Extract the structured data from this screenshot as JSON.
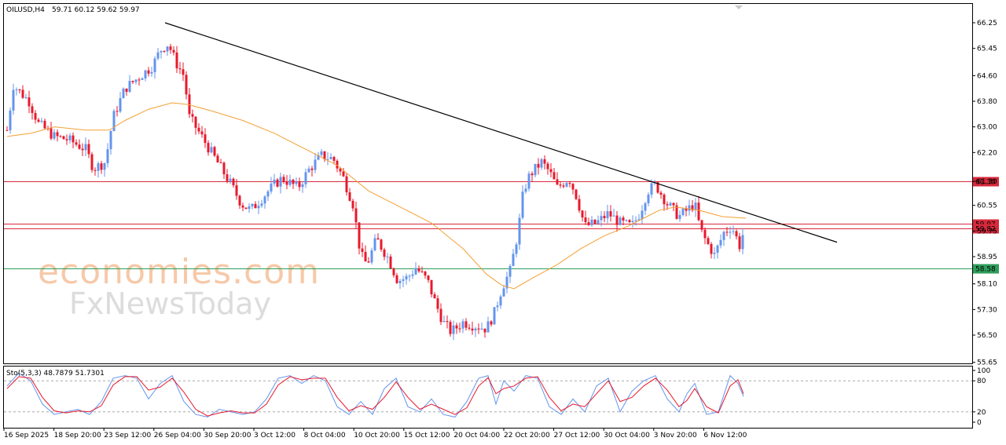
{
  "header": {
    "symbol": "OILUSD,H4",
    "ohlc": "59.71 60.12 59.62 59.97"
  },
  "watermark": {
    "line1": "economies.com",
    "line2": "FxNewsToday"
  },
  "chart_data": {
    "type": "candlestick",
    "title": "OILUSD,H4",
    "ylim": [
      55.65,
      66.6
    ],
    "y_ticks": [
      "66.25",
      "65.45",
      "64.60",
      "63.80",
      "63.00",
      "62.20",
      "61.30",
      "60.55",
      "59.75",
      "58.95",
      "58.10",
      "57.30",
      "56.50",
      "55.65"
    ],
    "x_ticks": [
      "16 Sep 2025",
      "18 Sep 20:00",
      "23 Sep 12:00",
      "26 Sep 04:00",
      "30 Sep 20:00",
      "3 Oct 12:00",
      "8 Oct 04:00",
      "10 Oct 20:00",
      "15 Oct 12:00",
      "20 Oct 04:00",
      "22 Oct 20:00",
      "27 Oct 12:00",
      "30 Oct 04:00",
      "3 Nov 20:00",
      "6 Nov 12:00"
    ],
    "price_path": [
      [
        0,
        62.9
      ],
      [
        8,
        64.3
      ],
      [
        28,
        63.8
      ],
      [
        40,
        63.1
      ],
      [
        60,
        62.7
      ],
      [
        78,
        62.6
      ],
      [
        100,
        62.3
      ],
      [
        110,
        61.7
      ],
      [
        125,
        61.9
      ],
      [
        135,
        63.3
      ],
      [
        150,
        64.2
      ],
      [
        170,
        64.6
      ],
      [
        185,
        64.9
      ],
      [
        195,
        65.4
      ],
      [
        205,
        65.6
      ],
      [
        215,
        65.0
      ],
      [
        225,
        64.6
      ],
      [
        232,
        63.3
      ],
      [
        245,
        62.8
      ],
      [
        265,
        62.0
      ],
      [
        285,
        61.2
      ],
      [
        298,
        60.6
      ],
      [
        310,
        60.4
      ],
      [
        325,
        60.8
      ],
      [
        340,
        61.2
      ],
      [
        350,
        61.4
      ],
      [
        370,
        61.1
      ],
      [
        385,
        61.7
      ],
      [
        400,
        62.1
      ],
      [
        415,
        62.0
      ],
      [
        428,
        61.4
      ],
      [
        440,
        60.6
      ],
      [
        450,
        59.0
      ],
      [
        458,
        58.7
      ],
      [
        470,
        59.5
      ],
      [
        485,
        58.9
      ],
      [
        497,
        58.2
      ],
      [
        510,
        58.3
      ],
      [
        520,
        58.6
      ],
      [
        535,
        58.2
      ],
      [
        545,
        57.5
      ],
      [
        555,
        56.9
      ],
      [
        565,
        56.6
      ],
      [
        580,
        56.9
      ],
      [
        595,
        56.8
      ],
      [
        610,
        56.7
      ],
      [
        620,
        57.2
      ],
      [
        630,
        58.0
      ],
      [
        640,
        58.5
      ],
      [
        650,
        59.7
      ],
      [
        657,
        61.0
      ],
      [
        665,
        61.5
      ],
      [
        680,
        61.9
      ],
      [
        690,
        61.6
      ],
      [
        700,
        61.1
      ],
      [
        715,
        61.4
      ],
      [
        725,
        60.8
      ],
      [
        735,
        59.9
      ],
      [
        750,
        60.0
      ],
      [
        765,
        60.3
      ],
      [
        780,
        60.0
      ],
      [
        795,
        59.9
      ],
      [
        805,
        60.3
      ],
      [
        815,
        61.0
      ],
      [
        825,
        61.2
      ],
      [
        840,
        60.6
      ],
      [
        855,
        60.2
      ],
      [
        865,
        60.4
      ],
      [
        875,
        60.6
      ],
      [
        882,
        59.8
      ],
      [
        890,
        59.4
      ],
      [
        900,
        59.0
      ],
      [
        912,
        59.7
      ],
      [
        922,
        59.9
      ],
      [
        932,
        59.3
      ],
      [
        938,
        59.8
      ]
    ],
    "moving_average": [
      [
        0,
        62.7
      ],
      [
        30,
        62.8
      ],
      [
        60,
        63.0
      ],
      [
        100,
        62.9
      ],
      [
        130,
        62.9
      ],
      [
        150,
        63.2
      ],
      [
        180,
        63.55
      ],
      [
        210,
        63.75
      ],
      [
        230,
        63.7
      ],
      [
        260,
        63.5
      ],
      [
        300,
        63.2
      ],
      [
        340,
        62.8
      ],
      [
        380,
        62.3
      ],
      [
        420,
        61.8
      ],
      [
        460,
        61.0
      ],
      [
        500,
        60.5
      ],
      [
        540,
        60.0
      ],
      [
        580,
        59.2
      ],
      [
        610,
        58.4
      ],
      [
        630,
        58.05
      ],
      [
        645,
        57.95
      ],
      [
        670,
        58.3
      ],
      [
        700,
        58.7
      ],
      [
        730,
        59.2
      ],
      [
        760,
        59.6
      ],
      [
        790,
        59.9
      ],
      [
        810,
        60.15
      ],
      [
        830,
        60.4
      ],
      [
        850,
        60.5
      ],
      [
        880,
        60.4
      ],
      [
        910,
        60.2
      ],
      [
        940,
        60.15
      ]
    ],
    "trendline": {
      "from": [
        210,
        66.25
      ],
      "to": [
        1065,
        59.4
      ]
    },
    "horizontal_levels": [
      {
        "value": 61.3,
        "label": "61.30",
        "color": "#d72a3c"
      },
      {
        "value": 59.97,
        "label": "59.97",
        "color": "#d72a3c"
      },
      {
        "value": 59.82,
        "label": "59.82",
        "color": "#d72a3c"
      },
      {
        "value": 58.58,
        "label": "58.58",
        "color": "#2e9e5b"
      }
    ],
    "stochastic": {
      "label": "Sto(5,3,3) 48.7879 51.7301",
      "k": 48.7879,
      "d": 51.7301,
      "y_ticks": [
        "100",
        "80",
        "20",
        "0"
      ],
      "levels": [
        80,
        20
      ],
      "k_path": [
        [
          0,
          70
        ],
        [
          15,
          95
        ],
        [
          30,
          80
        ],
        [
          45,
          35
        ],
        [
          60,
          15
        ],
        [
          75,
          20
        ],
        [
          90,
          25
        ],
        [
          105,
          15
        ],
        [
          120,
          40
        ],
        [
          135,
          85
        ],
        [
          150,
          90
        ],
        [
          165,
          85
        ],
        [
          180,
          45
        ],
        [
          195,
          75
        ],
        [
          210,
          90
        ],
        [
          225,
          40
        ],
        [
          240,
          15
        ],
        [
          255,
          10
        ],
        [
          270,
          25
        ],
        [
          285,
          20
        ],
        [
          300,
          15
        ],
        [
          315,
          20
        ],
        [
          330,
          45
        ],
        [
          345,
          85
        ],
        [
          360,
          90
        ],
        [
          375,
          75
        ],
        [
          390,
          90
        ],
        [
          405,
          80
        ],
        [
          420,
          30
        ],
        [
          435,
          15
        ],
        [
          450,
          40
        ],
        [
          465,
          15
        ],
        [
          480,
          65
        ],
        [
          495,
          85
        ],
        [
          510,
          30
        ],
        [
          525,
          20
        ],
        [
          540,
          45
        ],
        [
          555,
          15
        ],
        [
          570,
          10
        ],
        [
          585,
          40
        ],
        [
          600,
          85
        ],
        [
          612,
          90
        ],
        [
          622,
          35
        ],
        [
          632,
          80
        ],
        [
          645,
          60
        ],
        [
          660,
          90
        ],
        [
          675,
          85
        ],
        [
          690,
          30
        ],
        [
          705,
          15
        ],
        [
          720,
          45
        ],
        [
          735,
          20
        ],
        [
          750,
          70
        ],
        [
          765,
          85
        ],
        [
          780,
          20
        ],
        [
          795,
          60
        ],
        [
          810,
          80
        ],
        [
          825,
          90
        ],
        [
          840,
          45
        ],
        [
          855,
          20
        ],
        [
          865,
          55
        ],
        [
          875,
          75
        ],
        [
          890,
          15
        ],
        [
          905,
          20
        ],
        [
          920,
          90
        ],
        [
          930,
          75
        ],
        [
          937,
          50
        ]
      ],
      "d_path": [
        [
          0,
          65
        ],
        [
          15,
          88
        ],
        [
          30,
          85
        ],
        [
          45,
          48
        ],
        [
          60,
          22
        ],
        [
          75,
          18
        ],
        [
          90,
          22
        ],
        [
          105,
          20
        ],
        [
          120,
          32
        ],
        [
          135,
          72
        ],
        [
          150,
          88
        ],
        [
          165,
          88
        ],
        [
          180,
          62
        ],
        [
          195,
          68
        ],
        [
          210,
          85
        ],
        [
          225,
          58
        ],
        [
          240,
          25
        ],
        [
          255,
          12
        ],
        [
          270,
          18
        ],
        [
          285,
          22
        ],
        [
          300,
          18
        ],
        [
          315,
          18
        ],
        [
          330,
          35
        ],
        [
          345,
          72
        ],
        [
          360,
          88
        ],
        [
          375,
          82
        ],
        [
          390,
          85
        ],
        [
          405,
          85
        ],
        [
          420,
          48
        ],
        [
          435,
          22
        ],
        [
          450,
          32
        ],
        [
          465,
          25
        ],
        [
          480,
          48
        ],
        [
          495,
          78
        ],
        [
          510,
          48
        ],
        [
          525,
          25
        ],
        [
          540,
          35
        ],
        [
          555,
          25
        ],
        [
          570,
          15
        ],
        [
          585,
          28
        ],
        [
          600,
          70
        ],
        [
          612,
          86
        ],
        [
          622,
          55
        ],
        [
          632,
          65
        ],
        [
          645,
          70
        ],
        [
          660,
          85
        ],
        [
          675,
          88
        ],
        [
          690,
          48
        ],
        [
          705,
          22
        ],
        [
          720,
          35
        ],
        [
          735,
          30
        ],
        [
          750,
          55
        ],
        [
          765,
          80
        ],
        [
          780,
          40
        ],
        [
          795,
          48
        ],
        [
          810,
          70
        ],
        [
          825,
          85
        ],
        [
          840,
          62
        ],
        [
          855,
          30
        ],
        [
          865,
          42
        ],
        [
          875,
          65
        ],
        [
          890,
          30
        ],
        [
          905,
          18
        ],
        [
          920,
          70
        ],
        [
          930,
          82
        ],
        [
          937,
          55
        ]
      ]
    },
    "colors": {
      "bull": "#6495ed",
      "bear": "#e8192c",
      "moving_average": "#f5a035",
      "trendline": "#000000",
      "stoch_main": "#6495ed",
      "stoch_signal": "#e8192c"
    }
  }
}
